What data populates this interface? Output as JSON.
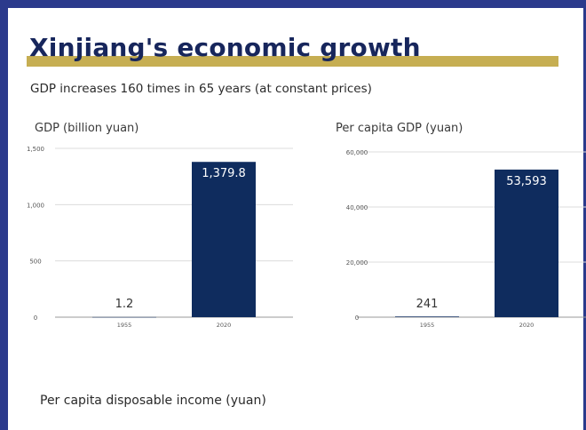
{
  "header": {
    "title": "Xinjiang's economic growth",
    "subtitle": "GDP increases 160 times in 65 years (at constant prices)"
  },
  "footer": {
    "section_title": "Per capita disposable income (yuan)"
  },
  "colors": {
    "bar": "#0f2c5e",
    "accent": "#c6ae52",
    "frame": "#2b3a8c"
  },
  "chart_data": [
    {
      "type": "bar",
      "title": "GDP (billion yuan)",
      "categories": [
        "1955",
        "2020"
      ],
      "values": [
        1.2,
        1379.8
      ],
      "value_labels": [
        "1.2",
        "1,379.8"
      ],
      "yticks": [
        "0",
        "500",
        "1,000",
        "1,500"
      ],
      "ylim": [
        0,
        1500
      ],
      "grid": true
    },
    {
      "type": "bar",
      "title": "Per capita GDP (yuan)",
      "categories": [
        "1955",
        "2020"
      ],
      "values": [
        241,
        53593
      ],
      "value_labels": [
        "241",
        "53,593"
      ],
      "yticks": [
        "0",
        "20,000",
        "40,000",
        "60,000"
      ],
      "ylim": [
        0,
        60000
      ],
      "grid": true
    }
  ]
}
